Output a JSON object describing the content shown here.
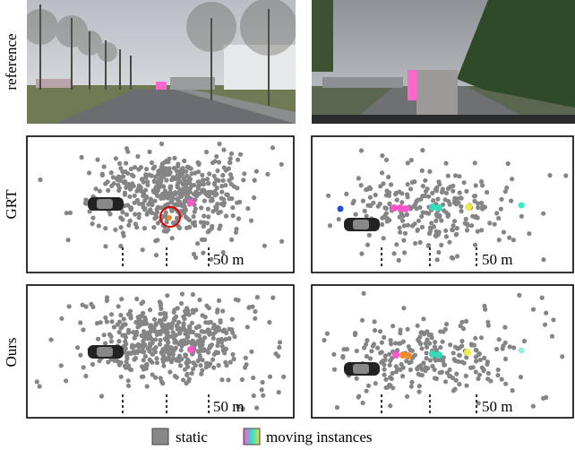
{
  "row_labels": [
    "reference",
    "GRT",
    "Ours"
  ],
  "panels": [
    {
      "scale_label": "50 m"
    },
    {
      "scale_label": "50 m"
    },
    {
      "scale_label": "50 m"
    },
    {
      "scale_label": "50 m"
    }
  ],
  "legend": [
    {
      "label": "static"
    },
    {
      "label": "moving instances"
    }
  ]
}
